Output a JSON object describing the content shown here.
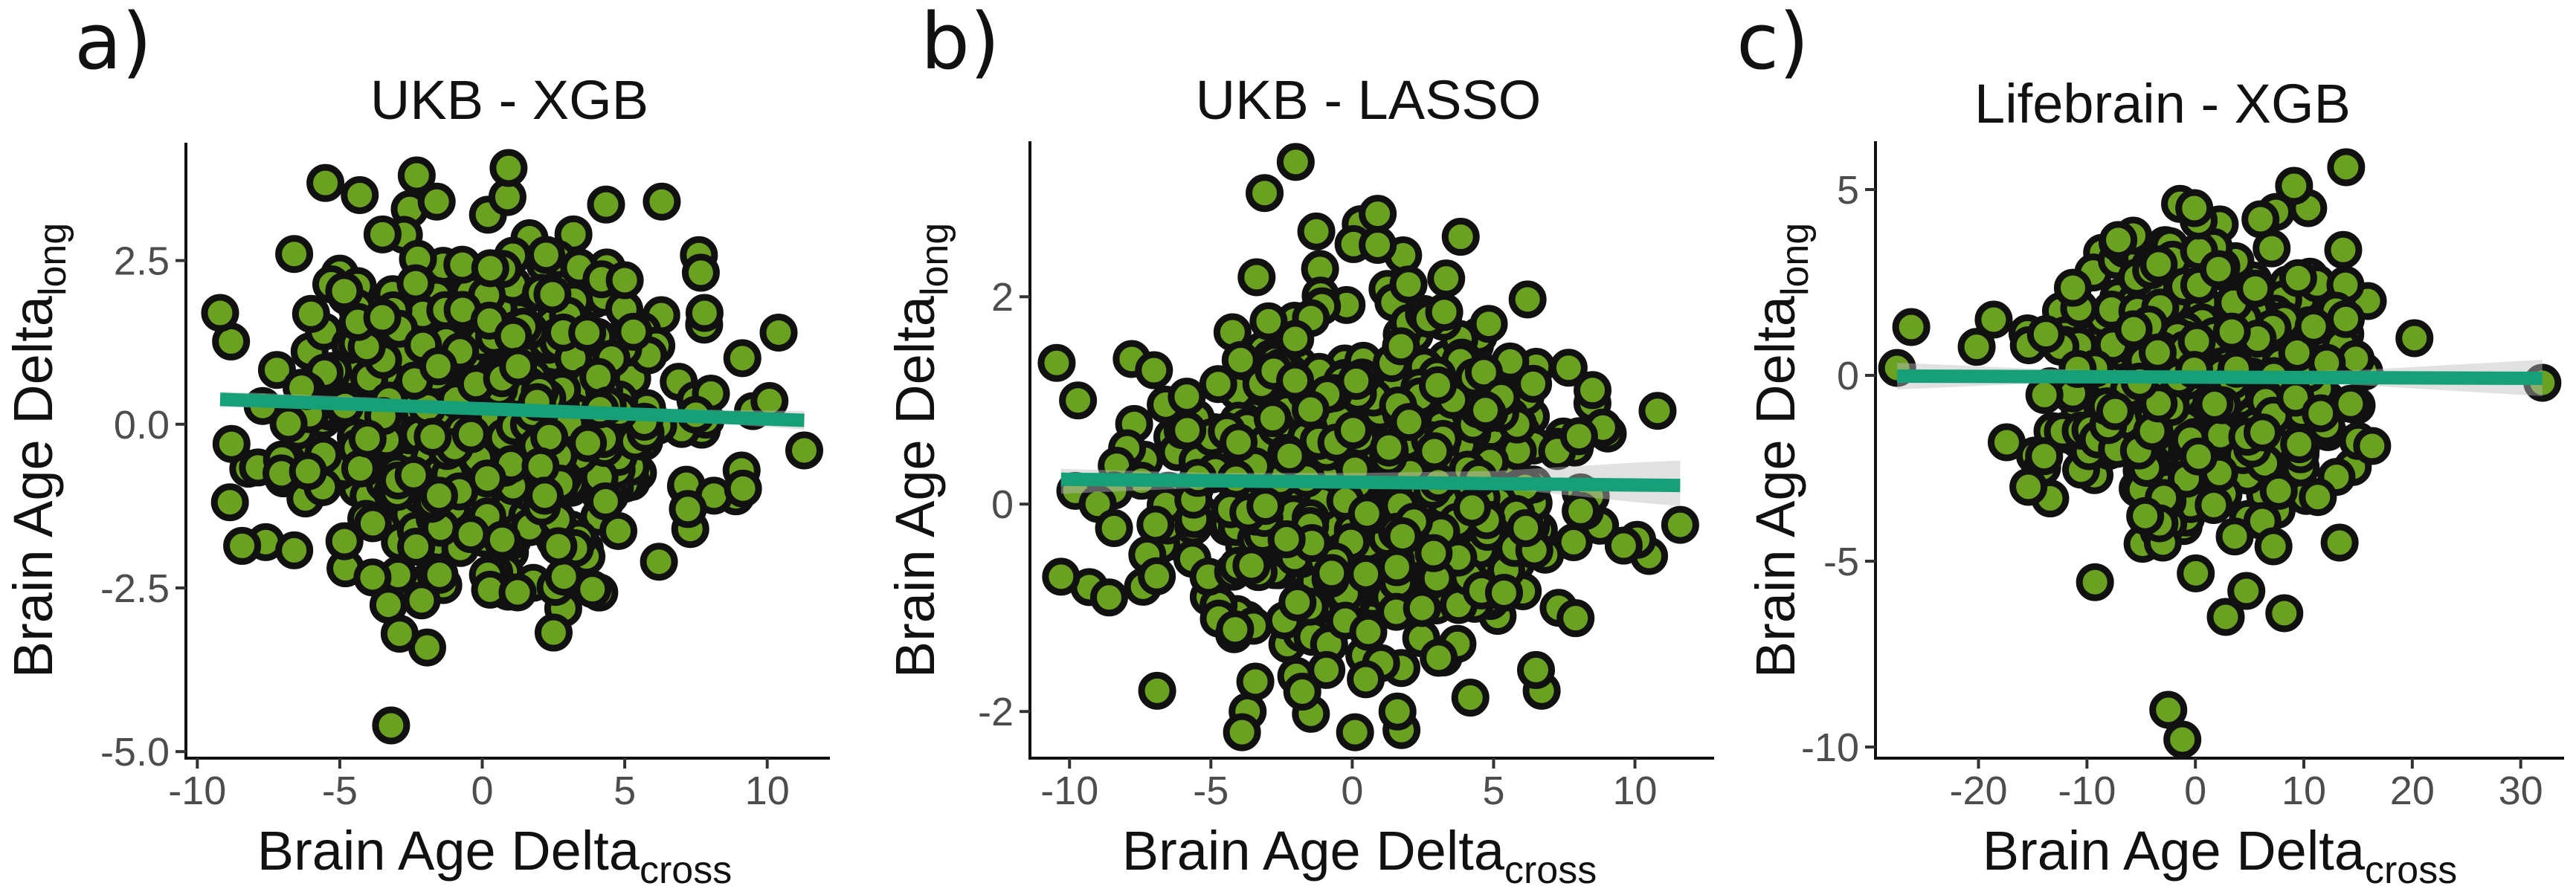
{
  "figure": {
    "background": "#ffffff"
  },
  "style": {
    "point_fill": "#6aa121",
    "point_edge": "#111111",
    "fit_color": "#17a078",
    "ci_color": "#bdbdbd"
  },
  "chart_data": [
    {
      "type": "scatter",
      "panel_label": "a)",
      "title": "UKB - XGB",
      "xlabel": "Brain Age Delta",
      "xlabel_sub": "cross",
      "ylabel": "Brain Age Delta",
      "ylabel_sub": "long",
      "xlim": [
        -10.4,
        12.2
      ],
      "ylim": [
        -5.1,
        4.3
      ],
      "xticks": [
        -10,
        -5,
        0,
        5,
        10
      ],
      "xtick_labels": [
        "-10",
        "-5",
        "0",
        "5",
        "10"
      ],
      "yticks": [
        -5,
        -2.5,
        0,
        2.5
      ],
      "ytick_labels": [
        "-5.0",
        "-2.5",
        "0.0",
        "2.5"
      ],
      "grid": false,
      "cloud": {
        "n": 620,
        "x_center": 0.2,
        "x_sd": 3.2,
        "y_center": 0.2,
        "y_sd": 1.2,
        "seed": 11
      },
      "points": [
        {
          "x": -9.2,
          "y": 1.7
        },
        {
          "x": -8.8,
          "y": -0.3
        },
        {
          "x": -7.6,
          "y": -1.8
        },
        {
          "x": -6.6,
          "y": 2.6
        },
        {
          "x": -4.3,
          "y": 3.5
        },
        {
          "x": -3.5,
          "y": 2.9
        },
        {
          "x": -2.3,
          "y": 3.8
        },
        {
          "x": -1.6,
          "y": 3.4
        },
        {
          "x": 0.2,
          "y": 3.2
        },
        {
          "x": 3.2,
          "y": 2.9
        },
        {
          "x": 6.3,
          "y": 3.4
        },
        {
          "x": 7.8,
          "y": 1.7
        },
        {
          "x": 10.4,
          "y": 1.4
        },
        {
          "x": 11.3,
          "y": -0.4
        },
        {
          "x": 8.9,
          "y": -1.1
        },
        {
          "x": 7.3,
          "y": -1.6
        },
        {
          "x": 6.2,
          "y": -2.1
        },
        {
          "x": -2.9,
          "y": -3.2
        },
        {
          "x": -3.2,
          "y": -4.6
        },
        {
          "x": -4.8,
          "y": -2.2
        },
        {
          "x": 0.2,
          "y": -2.3
        },
        {
          "x": 3.6,
          "y": -1.9
        },
        {
          "x": -1.5,
          "y": -2.3
        },
        {
          "x": 9.5,
          "y": 0.2
        },
        {
          "x": 5.0,
          "y": 2.2
        },
        {
          "x": -5.0,
          "y": 2.3
        }
      ],
      "fit": {
        "x": [
          -9.2,
          11.3
        ],
        "y": [
          0.38,
          0.06
        ]
      },
      "ci": {
        "x": [
          -9.2,
          -4,
          0,
          4,
          8,
          11.3
        ],
        "lo": [
          0.26,
          0.24,
          0.17,
          0.1,
          0.02,
          -0.08
        ],
        "hi": [
          0.5,
          0.41,
          0.31,
          0.26,
          0.22,
          0.2
        ]
      }
    },
    {
      "type": "scatter",
      "panel_label": "b)",
      "title": "UKB - LASSO",
      "xlabel": "Brain Age Delta",
      "xlabel_sub": "cross",
      "ylabel": "Brain Age Delta",
      "ylabel_sub": "long",
      "xlim": [
        -11.4,
        12.8
      ],
      "ylim": [
        -2.45,
        3.5
      ],
      "xticks": [
        -10,
        -5,
        0,
        5,
        10
      ],
      "xtick_labels": [
        "-10",
        "-5",
        "0",
        "5",
        "10"
      ],
      "yticks": [
        -2,
        0,
        2
      ],
      "ytick_labels": [
        "-2",
        "0",
        "2"
      ],
      "grid": false,
      "cloud": {
        "n": 760,
        "x_center": 0.2,
        "x_sd": 3.4,
        "y_center": 0.2,
        "y_sd": 0.75,
        "seed": 23
      },
      "points": [
        {
          "x": -10.3,
          "y": -0.7
        },
        {
          "x": -9.7,
          "y": 1.0
        },
        {
          "x": -9.3,
          "y": -0.8
        },
        {
          "x": -8.6,
          "y": -0.9
        },
        {
          "x": -7.8,
          "y": 1.4
        },
        {
          "x": -6.9,
          "y": -1.8
        },
        {
          "x": -3.9,
          "y": -2.2
        },
        {
          "x": -3.7,
          "y": -2.0
        },
        {
          "x": -3.1,
          "y": 3.0
        },
        {
          "x": -2.0,
          "y": 3.3
        },
        {
          "x": 0.3,
          "y": 2.7
        },
        {
          "x": 0.9,
          "y": 2.8
        },
        {
          "x": 0.9,
          "y": 2.5
        },
        {
          "x": 1.8,
          "y": 2.4
        },
        {
          "x": 1.6,
          "y": -2.0
        },
        {
          "x": 0.1,
          "y": -2.2
        },
        {
          "x": 6.7,
          "y": -1.8
        },
        {
          "x": 7.3,
          "y": -1.0
        },
        {
          "x": 8.5,
          "y": 1.1
        },
        {
          "x": 10.8,
          "y": 0.9
        },
        {
          "x": 11.6,
          "y": -0.2
        },
        {
          "x": 10.5,
          "y": -0.5
        },
        {
          "x": 9.6,
          "y": -0.4
        },
        {
          "x": 7.9,
          "y": -1.1
        },
        {
          "x": 6.5,
          "y": -1.6
        }
      ],
      "fit": {
        "x": [
          -10.3,
          11.6
        ],
        "y": [
          0.24,
          0.18
        ]
      },
      "ci": {
        "x": [
          -10.3,
          -5,
          0,
          5,
          10,
          11.6
        ],
        "lo": [
          0.1,
          0.16,
          0.19,
          0.16,
          0.02,
          -0.02
        ],
        "hi": [
          0.34,
          0.3,
          0.3,
          0.32,
          0.4,
          0.42
        ]
      }
    },
    {
      "type": "scatter",
      "panel_label": "c)",
      "title": "Lifebrain - XGB",
      "xlabel": "Brain Age Delta",
      "xlabel_sub": "cross",
      "ylabel": "Brain Age Delta",
      "ylabel_sub": "long",
      "xlim": [
        -29.5,
        34
      ],
      "ylim": [
        -10.3,
        6.3
      ],
      "xticks": [
        -20,
        -10,
        0,
        10,
        20,
        30
      ],
      "xtick_labels": [
        "-20",
        "-10",
        "0",
        "10",
        "20",
        "30"
      ],
      "yticks": [
        -10,
        -5,
        0,
        5
      ],
      "ytick_labels": [
        "-10",
        "-5",
        "0",
        "5"
      ],
      "grid": false,
      "cloud": {
        "n": 420,
        "x_center": 0.0,
        "x_sd": 6.5,
        "y_center": 0.0,
        "y_sd": 1.9,
        "seed": 37
      },
      "points": [
        {
          "x": -27.5,
          "y": 0.2
        },
        {
          "x": -26.2,
          "y": 1.3
        },
        {
          "x": -18.6,
          "y": 1.5
        },
        {
          "x": -17.4,
          "y": -1.8
        },
        {
          "x": -15.4,
          "y": -3.0
        },
        {
          "x": -2.5,
          "y": -9.0
        },
        {
          "x": -1.2,
          "y": -9.8
        },
        {
          "x": 2.8,
          "y": -6.5
        },
        {
          "x": 4.7,
          "y": -5.8
        },
        {
          "x": 7.2,
          "y": -4.6
        },
        {
          "x": 8.2,
          "y": -6.4
        },
        {
          "x": 13.3,
          "y": -4.5
        },
        {
          "x": 13.9,
          "y": 5.6
        },
        {
          "x": 9.1,
          "y": 5.1
        },
        {
          "x": 10.4,
          "y": 4.5
        },
        {
          "x": -0.1,
          "y": 4.5
        },
        {
          "x": 15.9,
          "y": 2.0
        },
        {
          "x": 20.2,
          "y": 1.0
        },
        {
          "x": 32.0,
          "y": -0.2
        },
        {
          "x": 16.3,
          "y": -1.9
        },
        {
          "x": -6.5,
          "y": 3.4
        },
        {
          "x": 6.0,
          "y": 4.2
        },
        {
          "x": -3.0,
          "y": -4.5
        }
      ],
      "fit": {
        "x": [
          -27.5,
          32.0
        ],
        "y": [
          -0.02,
          -0.08
        ]
      },
      "ci": {
        "x": [
          -27.5,
          -15,
          0,
          15,
          32.0
        ],
        "lo": [
          -0.38,
          -0.22,
          -0.16,
          -0.26,
          -0.56
        ],
        "hi": [
          0.34,
          0.18,
          0.08,
          0.14,
          0.42
        ]
      }
    }
  ]
}
